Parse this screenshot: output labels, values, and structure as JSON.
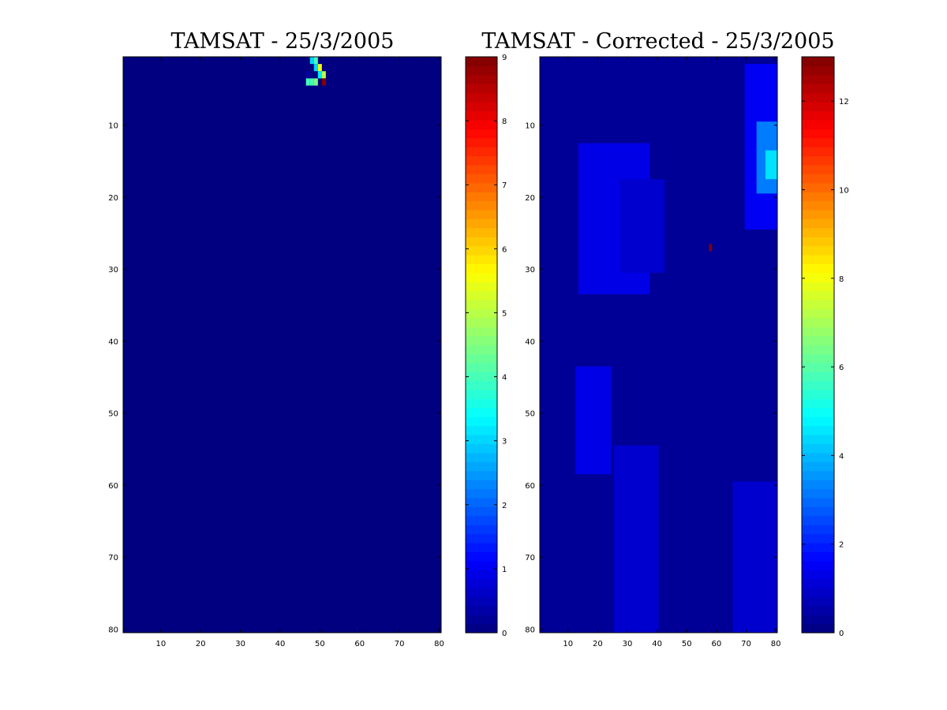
{
  "chart_data": [
    {
      "type": "heatmap",
      "title": "TAMSAT - 25/3/2005",
      "xlabel": "",
      "ylabel": "",
      "grid": false,
      "colormap": "jet",
      "xlim": [
        0.5,
        80.5
      ],
      "ylim": [
        80.5,
        0.5
      ],
      "y_direction": "reverse",
      "xticks": [
        10,
        20,
        30,
        40,
        50,
        60,
        70,
        80
      ],
      "yticks": [
        10,
        20,
        30,
        40,
        50,
        60,
        70,
        80
      ],
      "background_value": 0,
      "cells": [
        {
          "row": 1,
          "col": 48,
          "value": 3
        },
        {
          "row": 1,
          "col": 49,
          "value": 4
        },
        {
          "row": 2,
          "col": 49,
          "value": 3
        },
        {
          "row": 2,
          "col": 50,
          "value": 5.5
        },
        {
          "row": 3,
          "col": 47,
          "value": 0.3
        },
        {
          "row": 3,
          "col": 50,
          "value": 3.2
        },
        {
          "row": 3,
          "col": 51,
          "value": 5
        },
        {
          "row": 4,
          "col": 47,
          "value": 4
        },
        {
          "row": 4,
          "col": 48,
          "value": 4
        },
        {
          "row": 4,
          "col": 49,
          "value": 4.5
        },
        {
          "row": 4,
          "col": 51,
          "value": 9
        }
      ],
      "colorbar": {
        "clim": [
          0,
          9
        ],
        "ticks": [
          0,
          1,
          2,
          3,
          4,
          5,
          6,
          7,
          8,
          9
        ]
      }
    },
    {
      "type": "heatmap",
      "title": "TAMSAT - Corrected - 25/3/2005",
      "xlabel": "",
      "ylabel": "",
      "grid": false,
      "colormap": "jet",
      "xlim": [
        0.5,
        80.5
      ],
      "ylim": [
        80.5,
        0.5
      ],
      "y_direction": "reverse",
      "xticks": [
        10,
        20,
        30,
        40,
        50,
        60,
        70,
        80
      ],
      "yticks": [
        10,
        20,
        30,
        40,
        50,
        60,
        70,
        80
      ],
      "background_value": 0.3,
      "regions": [
        {
          "row_range": [
            13,
            33
          ],
          "col_range": [
            14,
            37
          ],
          "value": 1.3
        },
        {
          "row_range": [
            18,
            30
          ],
          "col_range": [
            28,
            42
          ],
          "value": 1.0
        },
        {
          "row_range": [
            44,
            58
          ],
          "col_range": [
            13,
            24
          ],
          "value": 1.3
        },
        {
          "row_range": [
            55,
            80
          ],
          "col_range": [
            26,
            40
          ],
          "value": 1.0
        },
        {
          "row_range": [
            60,
            80
          ],
          "col_range": [
            66,
            80
          ],
          "value": 1.0
        },
        {
          "row_range": [
            2,
            24
          ],
          "col_range": [
            70,
            80
          ],
          "value": 1.5
        },
        {
          "row_range": [
            10,
            19
          ],
          "col_range": [
            74,
            80
          ],
          "value": 3.2
        },
        {
          "row_range": [
            14,
            17
          ],
          "col_range": [
            77,
            80
          ],
          "value": 4.5
        }
      ],
      "cells": [
        {
          "row": 27,
          "col": 58,
          "value": 13
        }
      ],
      "colorbar": {
        "clim": [
          0,
          13
        ],
        "ticks": [
          0,
          2,
          4,
          6,
          8,
          10,
          12
        ]
      }
    }
  ]
}
